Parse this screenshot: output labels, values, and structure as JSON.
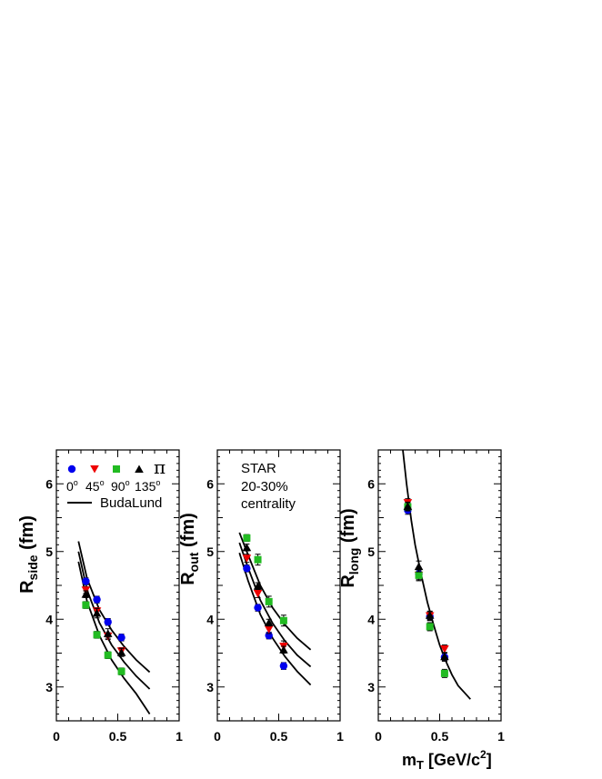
{
  "chart_data": [
    {
      "type": "scatter",
      "panel": "side",
      "ylabel_main": "R",
      "ylabel_sub": "side",
      "ylabel_unit": " (fm)",
      "xlim": [
        0,
        1
      ],
      "ylim": [
        2.5,
        6.5
      ],
      "x_ticks": [
        "0",
        "0.5",
        "1"
      ],
      "y_ticks": [
        "3",
        "4",
        "5",
        "6"
      ],
      "series": [
        {
          "name": "0",
          "color": "#0000ee",
          "marker": "circle",
          "x": [
            0.24,
            0.33,
            0.42,
            0.53
          ],
          "y": [
            4.56,
            4.29,
            3.96,
            3.73
          ],
          "err": [
            0.05,
            0.05,
            0.05,
            0.05
          ]
        },
        {
          "name": "45",
          "color": "#ee0000",
          "marker": "triangle-down",
          "x": [
            0.24,
            0.33,
            0.42,
            0.53
          ],
          "y": [
            4.43,
            4.12,
            3.75,
            3.53
          ],
          "err": [
            0.05,
            0.05,
            0.05,
            0.05
          ]
        },
        {
          "name": "90",
          "color": "#22bb22",
          "marker": "square",
          "x": [
            0.24,
            0.33,
            0.42,
            0.53
          ],
          "y": [
            4.21,
            3.77,
            3.47,
            3.23
          ],
          "err": [
            0.05,
            0.05,
            0.05,
            0.05
          ]
        },
        {
          "name": "135",
          "color": "#000000",
          "marker": "triangle-up",
          "x": [
            0.24,
            0.33,
            0.42,
            0.53
          ],
          "y": [
            4.37,
            4.09,
            3.79,
            3.51
          ],
          "err": [
            0.05,
            0.07,
            0.07,
            0.06
          ]
        }
      ],
      "curves": [
        {
          "x": [
            0.18,
            0.25,
            0.35,
            0.45,
            0.55,
            0.65,
            0.76
          ],
          "y": [
            5.15,
            4.6,
            4.14,
            3.84,
            3.6,
            3.4,
            3.22
          ]
        },
        {
          "x": [
            0.18,
            0.25,
            0.35,
            0.45,
            0.55,
            0.65,
            0.76
          ],
          "y": [
            5.0,
            4.43,
            3.95,
            3.62,
            3.37,
            3.16,
            2.97
          ]
        },
        {
          "x": [
            0.18,
            0.25,
            0.35,
            0.45,
            0.55,
            0.65,
            0.76
          ],
          "y": [
            4.85,
            4.26,
            3.76,
            3.4,
            3.13,
            2.9,
            2.6
          ]
        }
      ]
    },
    {
      "type": "scatter",
      "panel": "out",
      "ylabel_main": "R",
      "ylabel_sub": "out",
      "ylabel_unit": " (fm)",
      "xlim": [
        0,
        1
      ],
      "ylim": [
        2.5,
        6.5
      ],
      "x_ticks": [
        "0",
        "0.5",
        "1"
      ],
      "y_ticks": [
        "3",
        "4",
        "5",
        "6"
      ],
      "series": [
        {
          "name": "0",
          "color": "#0000ee",
          "marker": "circle",
          "x": [
            0.24,
            0.33,
            0.42,
            0.54
          ],
          "y": [
            4.75,
            4.17,
            3.76,
            3.31
          ],
          "err": [
            0.05,
            0.05,
            0.05,
            0.05
          ]
        },
        {
          "name": "45",
          "color": "#ee0000",
          "marker": "triangle-down",
          "x": [
            0.24,
            0.33,
            0.42,
            0.54
          ],
          "y": [
            4.9,
            4.38,
            3.85,
            3.6
          ],
          "err": [
            0.06,
            0.06,
            0.06,
            0.08
          ]
        },
        {
          "name": "90",
          "color": "#22bb22",
          "marker": "square",
          "x": [
            0.24,
            0.33,
            0.42,
            0.54
          ],
          "y": [
            5.2,
            4.88,
            4.26,
            3.98
          ],
          "err": [
            0.05,
            0.08,
            0.08,
            0.08
          ]
        },
        {
          "name": "135",
          "color": "#000000",
          "marker": "triangle-up",
          "x": [
            0.24,
            0.33,
            0.42,
            0.54
          ],
          "y": [
            5.06,
            4.49,
            3.95,
            3.55
          ],
          "err": [
            0.05,
            0.05,
            0.05,
            0.05
          ]
        }
      ],
      "curves": [
        {
          "x": [
            0.18,
            0.25,
            0.35,
            0.45,
            0.55,
            0.65,
            0.76
          ],
          "y": [
            5.28,
            4.95,
            4.5,
            4.17,
            3.92,
            3.72,
            3.55
          ]
        },
        {
          "x": [
            0.18,
            0.25,
            0.35,
            0.45,
            0.55,
            0.65,
            0.76
          ],
          "y": [
            5.13,
            4.76,
            4.28,
            3.94,
            3.68,
            3.47,
            3.3
          ]
        },
        {
          "x": [
            0.18,
            0.25,
            0.35,
            0.45,
            0.55,
            0.65,
            0.76
          ],
          "y": [
            4.98,
            4.57,
            4.07,
            3.72,
            3.45,
            3.23,
            3.03
          ]
        }
      ],
      "annotation": [
        "STAR",
        "20-30%",
        "centrality"
      ]
    },
    {
      "type": "scatter",
      "panel": "long",
      "ylabel_main": "R",
      "ylabel_sub": "long",
      "ylabel_unit": " (fm)",
      "xlabel_main": "m",
      "xlabel_sub": "T",
      "xlabel_rest": " [GeV/c",
      "xlabel_sup": "2",
      "xlabel_end": "]",
      "xlim": [
        0,
        1
      ],
      "ylim": [
        2.5,
        6.5
      ],
      "x_ticks": [
        "0",
        "0.5",
        "1"
      ],
      "y_ticks": [
        "3",
        "4",
        "5",
        "6"
      ],
      "series": [
        {
          "name": "0",
          "color": "#0000ee",
          "marker": "circle",
          "x": [
            0.24,
            0.33,
            0.42,
            0.54
          ],
          "y": [
            5.61,
            4.67,
            4.04,
            3.44
          ],
          "err": [
            0.06,
            0.08,
            0.06,
            0.06
          ]
        },
        {
          "name": "45",
          "color": "#ee0000",
          "marker": "triangle-down",
          "x": [
            0.24,
            0.33,
            0.42,
            0.54
          ],
          "y": [
            5.72,
            4.65,
            4.05,
            3.56
          ],
          "err": [
            0.06,
            0.08,
            0.06,
            0.06
          ]
        },
        {
          "name": "90",
          "color": "#22bb22",
          "marker": "square",
          "x": [
            0.24,
            0.33,
            0.42,
            0.54
          ],
          "y": [
            5.66,
            4.65,
            3.89,
            3.2
          ],
          "err": [
            0.06,
            0.08,
            0.06,
            0.06
          ]
        },
        {
          "name": "135",
          "color": "#000000",
          "marker": "triangle-up",
          "x": [
            0.24,
            0.33,
            0.42,
            0.54
          ],
          "y": [
            5.67,
            4.78,
            4.06,
            3.45
          ],
          "err": [
            0.06,
            0.08,
            0.06,
            0.06
          ]
        }
      ],
      "curves": [
        {
          "x": [
            0.2,
            0.23,
            0.27,
            0.3,
            0.35,
            0.4,
            0.45,
            0.5,
            0.55,
            0.6,
            0.65,
            0.7,
            0.75
          ],
          "y": [
            6.5,
            6.0,
            5.45,
            5.1,
            4.65,
            4.25,
            3.92,
            3.62,
            3.38,
            3.18,
            3.02,
            2.92,
            2.82
          ]
        }
      ]
    }
  ],
  "legend": {
    "items": [
      {
        "label": "0",
        "sup": "o",
        "color": "#0000ee",
        "marker": "circle"
      },
      {
        "label": "45",
        "sup": "o",
        "color": "#ee0000",
        "marker": "triangle-down"
      },
      {
        "label": "90",
        "sup": "o",
        "color": "#22bb22",
        "marker": "square"
      },
      {
        "label": "135",
        "sup": "o",
        "color": "#000000",
        "marker": "triangle-up"
      }
    ],
    "particle": "π",
    "model_label": "BudaLund"
  }
}
